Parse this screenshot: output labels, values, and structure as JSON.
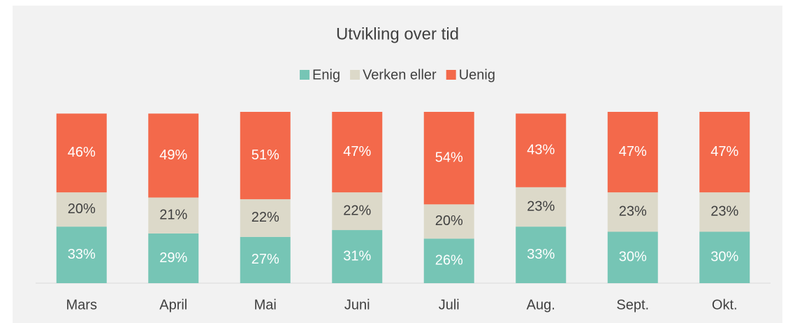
{
  "chart_data": {
    "type": "stacked_bar",
    "title": "Utvikling over tid",
    "categories": [
      "Mars",
      "April",
      "Mai",
      "Juni",
      "Juli",
      "Aug.",
      "Sept.",
      "Okt."
    ],
    "series": [
      {
        "name": "Enig",
        "color": "#76c5b5",
        "values": [
          33,
          29,
          27,
          31,
          26,
          33,
          30,
          30
        ],
        "value_labels": [
          "33%",
          "29%",
          "27%",
          "31%",
          "26%",
          "33%",
          "30%",
          "30%"
        ]
      },
      {
        "name": "Verken eller",
        "color": "#dcd9c9",
        "values": [
          20,
          21,
          22,
          22,
          20,
          23,
          23,
          23
        ],
        "value_labels": [
          "20%",
          "21%",
          "22%",
          "22%",
          "20%",
          "23%",
          "23%",
          "23%"
        ]
      },
      {
        "name": "Uenig",
        "color": "#f3694b",
        "values": [
          46,
          49,
          51,
          47,
          54,
          43,
          47,
          47
        ],
        "value_labels": [
          "46%",
          "49%",
          "51%",
          "47%",
          "54%",
          "43%",
          "47%",
          "47%"
        ]
      }
    ],
    "ylim": [
      0,
      100
    ],
    "legend": "top"
  }
}
